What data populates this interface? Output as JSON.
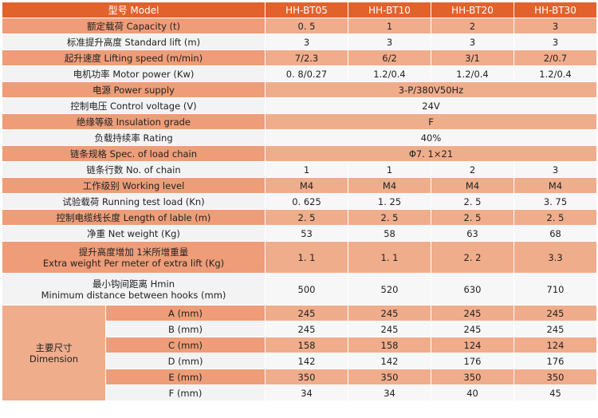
{
  "header": {
    "label": "型号  Model",
    "models": [
      "HH-BT05",
      "HH-BT10",
      "HH-BT20",
      "HH-BT30"
    ]
  },
  "rows": [
    {
      "label": "额定载荷  Capacity (t)",
      "values": [
        "0. 5",
        "1",
        "2",
        "3"
      ]
    },
    {
      "label": "标准提升高度  Standard  lift (m)",
      "values": [
        "3",
        "3",
        "3",
        "3"
      ]
    },
    {
      "label": "起升速度  Lifting speed (m/min)",
      "values": [
        "7/2.3",
        "6/2",
        "3/1",
        "2/0.7"
      ]
    },
    {
      "label": "电机功率  Motor power (Kw)",
      "values": [
        "0. 8/0.27",
        "1.2/0.4",
        "1.2/0.4",
        "1.2/0.4"
      ]
    },
    {
      "label": "电源  Power supply",
      "merged": "3-P/380V50Hz"
    },
    {
      "label": "控制电压 Control voltage (V)",
      "merged": "24V"
    },
    {
      "label": "绝缘等级  Insulation grade",
      "merged": "F"
    },
    {
      "label": "负载持续率  Rating",
      "merged": "40%"
    },
    {
      "label": "链条规格  Spec. of load chain",
      "merged": "Φ7. 1×21"
    },
    {
      "label": "链条行数  No. of chain",
      "values": [
        "1",
        "1",
        "2",
        "3"
      ]
    },
    {
      "label": "工作级别 Working level",
      "values": [
        "M4",
        "M4",
        "M4",
        "M4"
      ]
    },
    {
      "label": "试验载荷  Running test load (Kn)",
      "values": [
        "0. 625",
        "1. 25",
        "2. 5",
        "3. 75"
      ]
    },
    {
      "label": "控制电缆线长度  Length of lable (m)",
      "values": [
        "2. 5",
        "2. 5",
        "2. 5",
        "2. 5"
      ]
    },
    {
      "label": "净重  Net weight (Kg)",
      "values": [
        "53",
        "58",
        "63",
        "68"
      ]
    }
  ],
  "extra_weight": {
    "line1": "提升高度增加 1米所增重量",
    "line2": "Extra weight Per meter of extra lift (Kg)",
    "values": [
      "1. 1",
      "1. 1",
      "2. 2",
      "3.3"
    ]
  },
  "hmin": {
    "line1": "最小钩间距离   Hmin",
    "line2": "Minimum distance between hooks (mm)",
    "values": [
      "500",
      "520",
      "630",
      "710"
    ]
  },
  "dimension": {
    "label_cn": "主要尺寸",
    "label_en": "Dimension",
    "rows": [
      {
        "label": "A (mm)",
        "values": [
          "245",
          "245",
          "245",
          "245"
        ]
      },
      {
        "label": "B (mm)",
        "values": [
          "245",
          "245",
          "245",
          "245"
        ]
      },
      {
        "label": "C (mm)",
        "values": [
          "158",
          "158",
          "124",
          "124"
        ]
      },
      {
        "label": "D (mm)",
        "values": [
          "142",
          "142",
          "176",
          "176"
        ]
      },
      {
        "label": "E (mm)",
        "values": [
          "350",
          "350",
          "350",
          "350"
        ]
      },
      {
        "label": "F (mm)",
        "values": [
          "34",
          "34",
          "40",
          "45"
        ]
      }
    ]
  },
  "colors": {
    "header": "#e1622d",
    "orange_row": "#f0ad8c",
    "white_row": "#f7f7f7"
  }
}
